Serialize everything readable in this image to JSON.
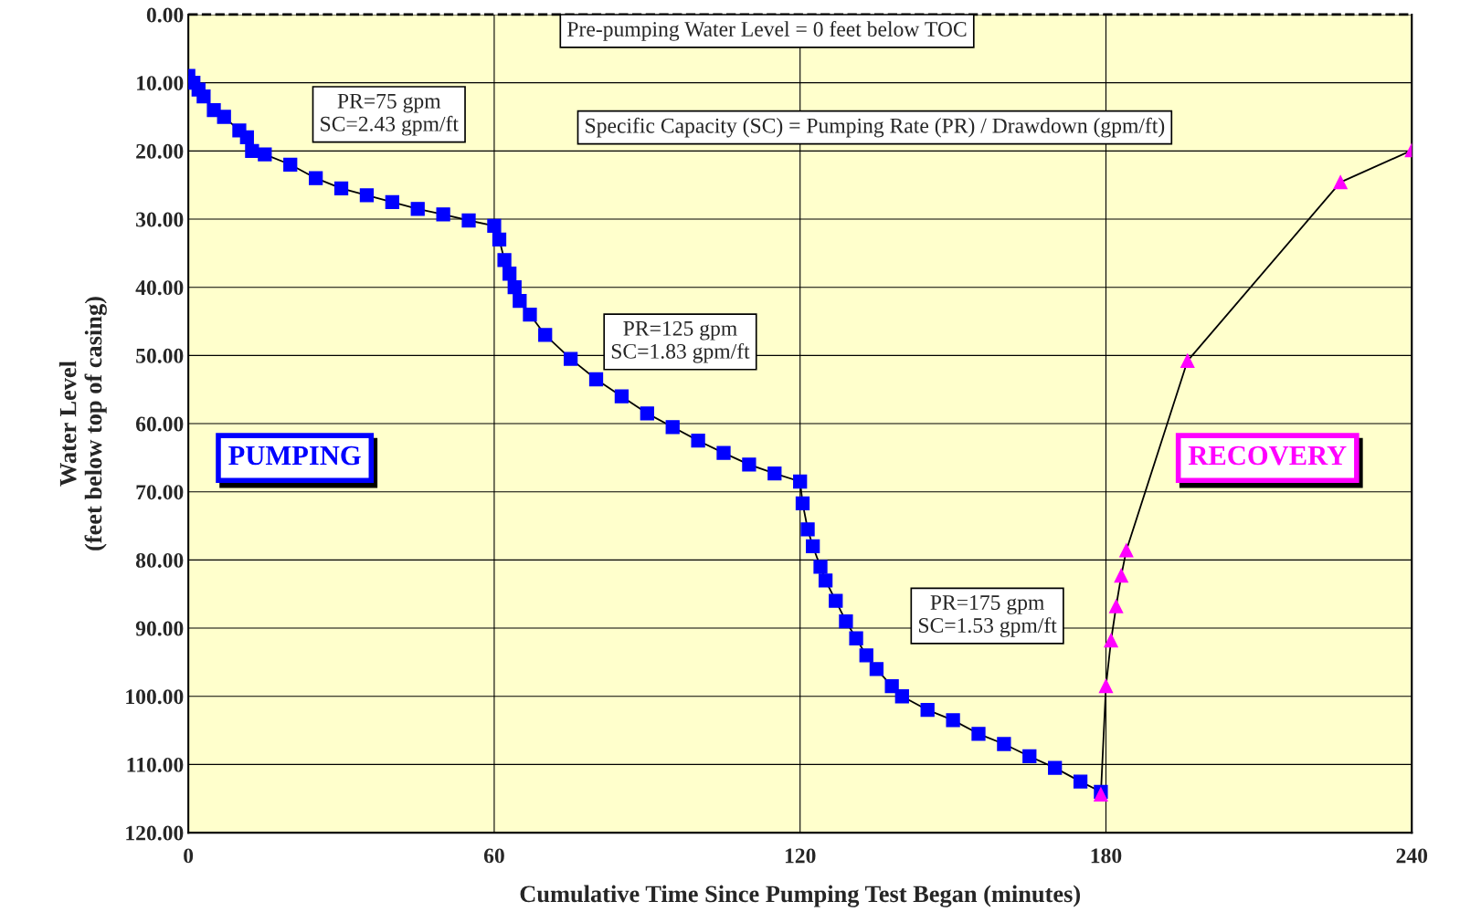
{
  "chart_data": {
    "type": "line",
    "xlabel": "Cumulative Time Since Pumping Test Began (minutes)",
    "ylabel": "Water Level\n(feet below top of casing)",
    "xlim": [
      0,
      240
    ],
    "xticks": [
      0,
      60,
      120,
      180,
      240
    ],
    "ylim": [
      120,
      0
    ],
    "yticks": [
      {
        "value": 0,
        "label": "0.00"
      },
      {
        "value": 10,
        "label": "10.00"
      },
      {
        "value": 20,
        "label": "20.00"
      },
      {
        "value": 30,
        "label": "30.00"
      },
      {
        "value": 40,
        "label": "40.00"
      },
      {
        "value": 50,
        "label": "50.00"
      },
      {
        "value": 60,
        "label": "60.00"
      },
      {
        "value": 70,
        "label": "70.00"
      },
      {
        "value": 80,
        "label": "80.00"
      },
      {
        "value": 90,
        "label": "90.00"
      },
      {
        "value": 100,
        "label": "100.00"
      },
      {
        "value": 110,
        "label": "110.00"
      },
      {
        "value": 120,
        "label": "120.00"
      }
    ],
    "grid": true,
    "series": [
      {
        "color": "#0000ff",
        "marker": "square",
        "x": [
          0,
          1,
          2,
          3,
          5,
          7,
          10,
          11.5,
          12.5,
          15,
          20,
          25,
          30,
          35,
          40,
          45,
          50,
          55,
          60,
          61,
          62,
          63,
          64,
          65,
          67,
          70,
          75,
          80,
          85,
          90,
          95,
          100,
          105,
          110,
          115,
          120,
          120.5,
          121.5,
          122.5,
          124,
          125,
          127,
          129,
          131,
          133,
          135,
          138,
          140,
          145,
          150,
          155,
          160,
          165,
          170,
          175,
          179
        ],
        "values": [
          9,
          10,
          11,
          12,
          14,
          15,
          17,
          18,
          20,
          20.5,
          22,
          24,
          25.5,
          26.5,
          27.5,
          28.5,
          29.3,
          30.2,
          31,
          33,
          36,
          38,
          40,
          42,
          44,
          47,
          50.5,
          53.5,
          56,
          58.5,
          60.5,
          62.5,
          64.3,
          66,
          67.3,
          68.5,
          71.7,
          75.5,
          78,
          81,
          83,
          86,
          89,
          91.5,
          94,
          96,
          98.5,
          100,
          102,
          103.5,
          105.5,
          107,
          108.8,
          110.5,
          112.5,
          114
        ]
      },
      {
        "color": "#ff00ff",
        "marker": "triangle",
        "x": [
          179,
          180,
          181,
          182,
          183,
          184,
          196,
          226,
          240
        ],
        "values": [
          114.4,
          98.5,
          91.8,
          86.8,
          82.3,
          78.6,
          50.8,
          24.6,
          19.9
        ]
      }
    ],
    "ref_lines": [
      {
        "axis": "y",
        "value": 0,
        "label": "Pre-pumping Water Level = 0 feet below TOC",
        "line_style": "dashed",
        "color": "#000000"
      }
    ],
    "annotations": [
      "PR=75 gpm\nSC=2.43 gpm/ft",
      "Specific Capacity (SC) = Pumping Rate (PR) / Drawdown (gpm/ft)",
      "PR=125 gpm\nSC=1.83 gpm/ft",
      "PR=175 gpm\nSC=1.53 gpm/ft",
      "PUMPING",
      "RECOVERY"
    ]
  }
}
